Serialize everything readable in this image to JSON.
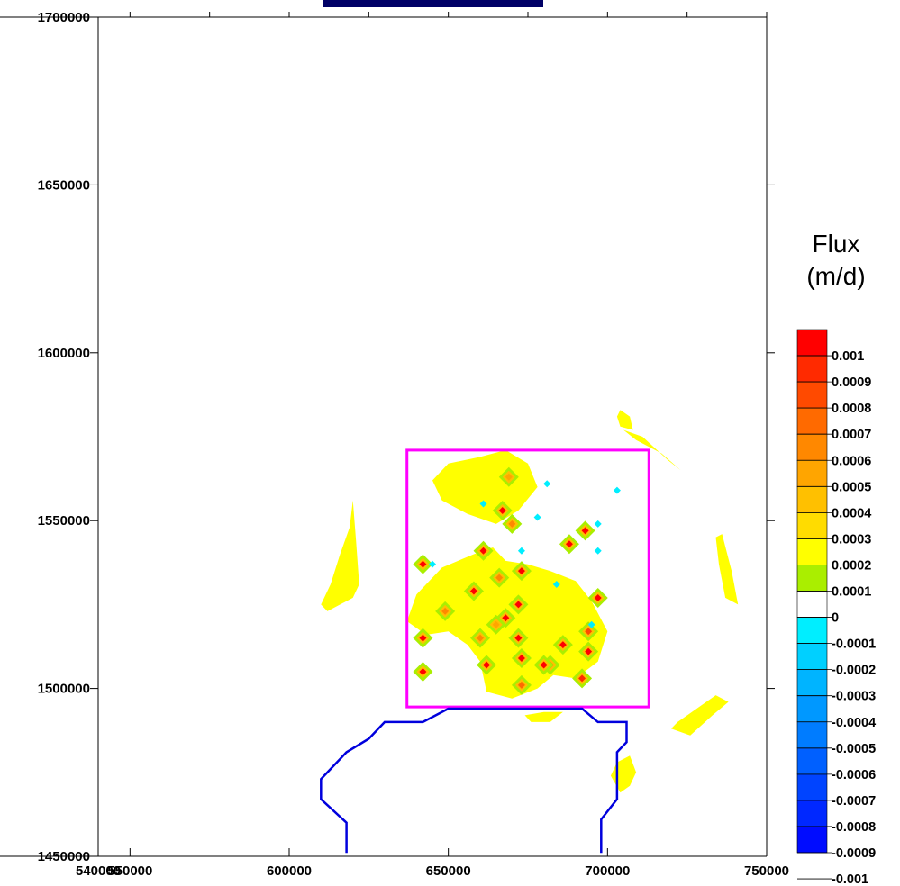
{
  "chart_data": {
    "type": "heatmap",
    "xlim": [
      540000,
      750000
    ],
    "ylim": [
      1450000,
      1700000
    ],
    "x_ticks": [
      540000,
      550000,
      600000,
      650000,
      700000,
      750000
    ],
    "x_tick_labels": [
      "540000",
      "550000",
      "600000",
      "650000",
      "700000",
      "750000"
    ],
    "y_ticks": [
      1450000,
      1500000,
      1550000,
      1600000,
      1650000,
      1700000
    ],
    "y_tick_labels": [
      "1450000",
      "1500000",
      "1550000",
      "1600000",
      "1650000",
      "1700000"
    ],
    "grid": false,
    "legend": {
      "title_line1": "Flux",
      "title_line2": "(m/d)",
      "placement": "right",
      "levels": [
        0.001,
        0.0009,
        0.0008,
        0.0007,
        0.0006,
        0.0005,
        0.0004,
        0.0003,
        0.0002,
        0.0001,
        0,
        -0.0001,
        -0.0002,
        -0.0003,
        -0.0004,
        -0.0005,
        -0.0006,
        -0.0007,
        -0.0008,
        -0.0009,
        -0.001
      ],
      "level_labels": [
        "0.001",
        "0.0009",
        "0.0008",
        "0.0007",
        "0.0006",
        "0.0005",
        "0.0004",
        "0.0003",
        "0.0002",
        "0.0001",
        "0",
        "-0.0001",
        "-0.0002",
        "-0.0003",
        "-0.0004",
        "-0.0005",
        "-0.0006",
        "-0.0007",
        "-0.0008",
        "-0.0009",
        "-0.001"
      ],
      "colors": [
        "#ff0000",
        "#ff2a00",
        "#ff4a00",
        "#ff6a00",
        "#ff8800",
        "#ffa500",
        "#ffc000",
        "#ffdc00",
        "#ffff00",
        "#aaee00",
        "#ffffff",
        "#00eeff",
        "#00d0ff",
        "#00b4ff",
        "#0098ff",
        "#007cff",
        "#0060ff",
        "#0044ff",
        "#0028ff",
        "#000cff"
      ]
    },
    "study_area_box": {
      "x": [
        637000,
        713000
      ],
      "y": [
        1494500,
        1571000
      ],
      "color": "#ff00ff"
    },
    "boundary_line": {
      "color": "#0000dd",
      "points": [
        [
          618000,
          1451000
        ],
        [
          618000,
          1460000
        ],
        [
          610000,
          1467000
        ],
        [
          610000,
          1473000
        ],
        [
          618000,
          1481000
        ],
        [
          625000,
          1485000
        ],
        [
          630000,
          1490000
        ],
        [
          642000,
          1490000
        ],
        [
          650000,
          1494000
        ],
        [
          692000,
          1494000
        ],
        [
          697000,
          1490000
        ],
        [
          706000,
          1490000
        ],
        [
          706000,
          1484000
        ],
        [
          703000,
          1481000
        ],
        [
          703000,
          1467000
        ],
        [
          698000,
          1461000
        ],
        [
          698000,
          1451000
        ]
      ]
    },
    "positive_wells": [
      [
        642000,
        1537000
      ],
      [
        658000,
        1529000
      ],
      [
        668000,
        1521000
      ],
      [
        672000,
        1515000
      ],
      [
        662000,
        1507000
      ],
      [
        673000,
        1509000
      ],
      [
        682000,
        1507000
      ],
      [
        686000,
        1513000
      ],
      [
        694000,
        1517000
      ],
      [
        697000,
        1527000
      ],
      [
        688000,
        1543000
      ],
      [
        661000,
        1541000
      ],
      [
        667000,
        1553000
      ],
      [
        642000,
        1515000
      ],
      [
        642000,
        1505000
      ],
      [
        692000,
        1503000
      ],
      [
        673000,
        1501000
      ],
      [
        660000,
        1515000
      ],
      [
        666000,
        1533000
      ],
      [
        673000,
        1535000
      ],
      [
        649000,
        1523000
      ],
      [
        672000,
        1525000
      ],
      [
        693000,
        1547000
      ],
      [
        694000,
        1511000
      ],
      [
        670000,
        1549000
      ],
      [
        669000,
        1563000
      ],
      [
        665000,
        1519000
      ],
      [
        680000,
        1507000
      ]
    ],
    "positive_well_levels": [
      0.001,
      0.001,
      0.0009,
      0.001,
      0.001,
      0.0009,
      0.0008,
      0.0009,
      0.0007,
      0.0009,
      0.0009,
      0.001,
      0.0009,
      0.001,
      0.0009,
      0.0008,
      0.0006,
      0.0005,
      0.0005,
      0.001,
      0.0005,
      0.001,
      0.001,
      0.001,
      0.0005,
      0.0004,
      0.0004,
      0.001
    ],
    "negative_wells": [
      [
        681000,
        1561000
      ],
      [
        661000,
        1555000
      ],
      [
        678000,
        1551000
      ],
      [
        697000,
        1549000
      ],
      [
        673000,
        1541000
      ],
      [
        697000,
        1541000
      ],
      [
        684000,
        1531000
      ],
      [
        695000,
        1519000
      ],
      [
        703000,
        1559000
      ],
      [
        645000,
        1537000
      ]
    ],
    "negative_well_levels": [
      -0.0002,
      -0.0002,
      -0.0002,
      -0.0002,
      -0.0002,
      -0.0002,
      -0.0002,
      -0.0002,
      -0.0002,
      -0.0002
    ],
    "flux_patches": [
      {
        "level": 0.0001,
        "points": [
          [
            650000,
            1567000
          ],
          [
            660000,
            1569000
          ],
          [
            668000,
            1571000
          ],
          [
            675000,
            1567000
          ],
          [
            678000,
            1560000
          ],
          [
            672000,
            1553000
          ],
          [
            665000,
            1549000
          ],
          [
            656000,
            1552000
          ],
          [
            648000,
            1556000
          ],
          [
            645000,
            1562000
          ]
        ]
      },
      {
        "level": 0.0001,
        "points": [
          [
            640000,
            1528000
          ],
          [
            648000,
            1536000
          ],
          [
            658000,
            1540000
          ],
          [
            664000,
            1542000
          ],
          [
            668000,
            1538000
          ],
          [
            675000,
            1537000
          ],
          [
            682000,
            1535000
          ],
          [
            690000,
            1532000
          ],
          [
            695000,
            1526000
          ],
          [
            700000,
            1517000
          ],
          [
            697000,
            1508000
          ],
          [
            690000,
            1503000
          ],
          [
            683000,
            1504000
          ],
          [
            678000,
            1500000
          ],
          [
            670000,
            1497000
          ],
          [
            662000,
            1499000
          ],
          [
            660000,
            1508000
          ],
          [
            656000,
            1513000
          ],
          [
            650000,
            1517000
          ],
          [
            643000,
            1516000
          ],
          [
            637000,
            1520000
          ]
        ]
      },
      {
        "level": 0.0001,
        "points": [
          [
            610000,
            1525000
          ],
          [
            613000,
            1531000
          ],
          [
            616000,
            1540000
          ],
          [
            619000,
            1548000
          ],
          [
            620000,
            1556000
          ],
          [
            621000,
            1544000
          ],
          [
            622000,
            1531000
          ],
          [
            620000,
            1527000
          ],
          [
            612000,
            1523000
          ]
        ]
      },
      {
        "level": 0.0001,
        "points": [
          [
            736000,
            1546000
          ],
          [
            739000,
            1535000
          ],
          [
            741000,
            1525000
          ],
          [
            737000,
            1527000
          ],
          [
            735000,
            1537000
          ],
          [
            734000,
            1545000
          ]
        ]
      },
      {
        "level": 0.0001,
        "points": [
          [
            705000,
            1577000
          ],
          [
            711000,
            1575000
          ],
          [
            719000,
            1568000
          ],
          [
            723000,
            1565000
          ],
          [
            717000,
            1570000
          ],
          [
            709000,
            1574000
          ]
        ]
      },
      {
        "level": 0.0001,
        "points": [
          [
            704000,
            1583000
          ],
          [
            707000,
            1581000
          ],
          [
            708000,
            1577000
          ],
          [
            704000,
            1578000
          ],
          [
            703000,
            1581000
          ]
        ]
      },
      {
        "level": 0.0001,
        "points": [
          [
            720000,
            1488000
          ],
          [
            726000,
            1486000
          ],
          [
            733000,
            1492000
          ],
          [
            738000,
            1496000
          ],
          [
            734000,
            1498000
          ],
          [
            728000,
            1494000
          ],
          [
            722000,
            1490000
          ]
        ]
      },
      {
        "level": 0.0001,
        "points": [
          [
            707000,
            1480000
          ],
          [
            709000,
            1475000
          ],
          [
            707000,
            1471000
          ],
          [
            704000,
            1469000
          ],
          [
            701000,
            1474000
          ],
          [
            703000,
            1478000
          ]
        ]
      },
      {
        "level": 0.0001,
        "points": [
          [
            674000,
            1492000
          ],
          [
            680000,
            1493000
          ],
          [
            686000,
            1493000
          ],
          [
            682000,
            1490000
          ],
          [
            676000,
            1490000
          ]
        ]
      }
    ]
  }
}
